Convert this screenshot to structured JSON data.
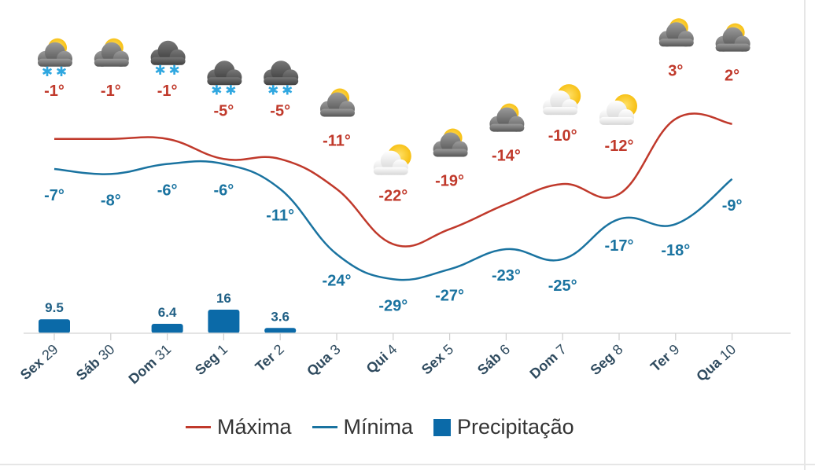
{
  "chart_data": {
    "type": "line",
    "categories": [
      "Sex 29",
      "Sáb 30",
      "Dom 31",
      "Seg 1",
      "Ter 2",
      "Qua 3",
      "Qui 4",
      "Sex 5",
      "Sáb 6",
      "Dom 7",
      "Seg 8",
      "Ter 9",
      "Qua 10"
    ],
    "series": [
      {
        "name": "Máxima",
        "type": "line",
        "color": "#c0392b",
        "values": [
          -1,
          -1,
          -1,
          -5,
          -5,
          -11,
          -22,
          -19,
          -14,
          -10,
          -12,
          3,
          2
        ],
        "labels": [
          "-1°",
          "-1°",
          "-1°",
          "-5°",
          "-5°",
          "-11°",
          "-22°",
          "-19°",
          "-14°",
          "-10°",
          "-12°",
          "3°",
          "2°"
        ]
      },
      {
        "name": "Mínima",
        "type": "line",
        "color": "#1a73a0",
        "values": [
          -7,
          -8,
          -6,
          -6,
          -11,
          -24,
          -29,
          -27,
          -23,
          -25,
          -17,
          -18,
          -9
        ],
        "labels": [
          "-7°",
          "-8°",
          "-6°",
          "-6°",
          "-11°",
          "-24°",
          "-29°",
          "-27°",
          "-23°",
          "-25°",
          "-17°",
          "-18°",
          "-9°"
        ]
      },
      {
        "name": "Precipitação",
        "type": "bar",
        "color": "#0b6aa8",
        "values": [
          9.5,
          null,
          6.4,
          16,
          3.6,
          null,
          null,
          null,
          null,
          null,
          null,
          null,
          null
        ],
        "labels": [
          "9.5",
          "",
          "6.4",
          "16",
          "3.6",
          "",
          "",
          "",
          "",
          "",
          "",
          "",
          ""
        ]
      }
    ],
    "icons": [
      "partly-sunny-snow-icon",
      "partly-sunny-cloud-icon",
      "cloud-snow-icon",
      "cloud-snow-icon",
      "cloud-snow-icon",
      "partly-sunny-cloud-icon",
      "sun-behind-cloud-icon",
      "partly-sunny-cloud-icon",
      "partly-sunny-cloud-icon",
      "sun-behind-cloud-icon",
      "sun-behind-cloud-icon",
      "partly-sunny-cloud-icon",
      "partly-sunny-cloud-icon"
    ],
    "legend_position": "bottom",
    "grid": false
  }
}
